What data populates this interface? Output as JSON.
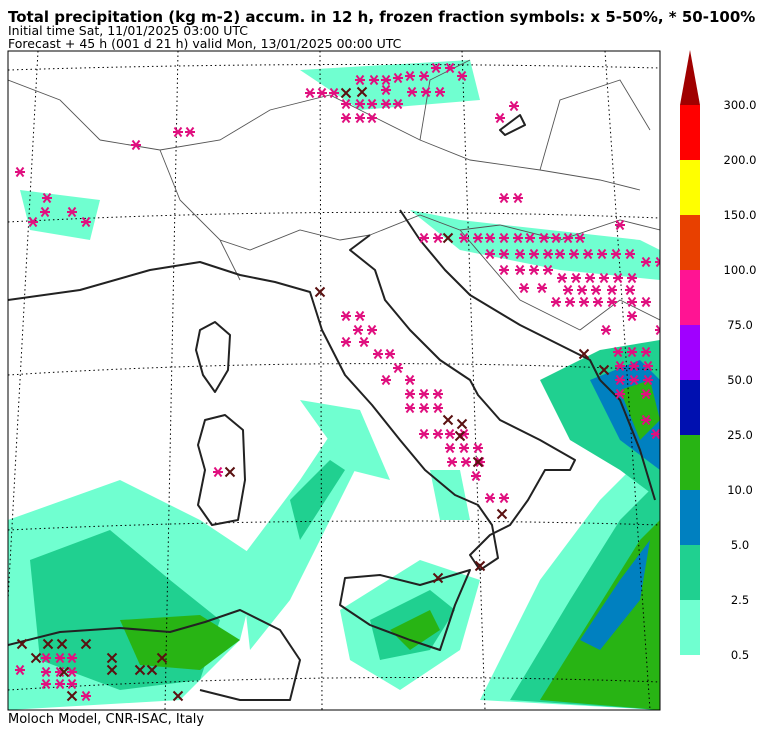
{
  "header": {
    "title": "Total precipitation (kg m-2) accum. in 12 h, frozen fraction symbols: x 5-50%, * 50-100%",
    "initial_time": "Initial time  Sat, 11/01/2025  03:00 UTC",
    "forecast": "Forecast  +  45 h  (001 d 21 h)  valid Mon, 13/01/2025 00:00 UTC"
  },
  "legend": {
    "labels": [
      "300.0",
      "200.0",
      "150.0",
      "100.0",
      "75.0",
      "50.0",
      "25.0",
      "10.0",
      "5.0",
      "2.5",
      "0.5"
    ],
    "colors": [
      "#a00000",
      "#ff0000",
      "#ffff00",
      "#e84000",
      "#ff1493",
      "#a000ff",
      "#0010b0",
      "#28b414",
      "#0080c0",
      "#20d090",
      "#70ffd0"
    ]
  },
  "footer": "Moloch Model, CNR-ISAC, Italy"
}
